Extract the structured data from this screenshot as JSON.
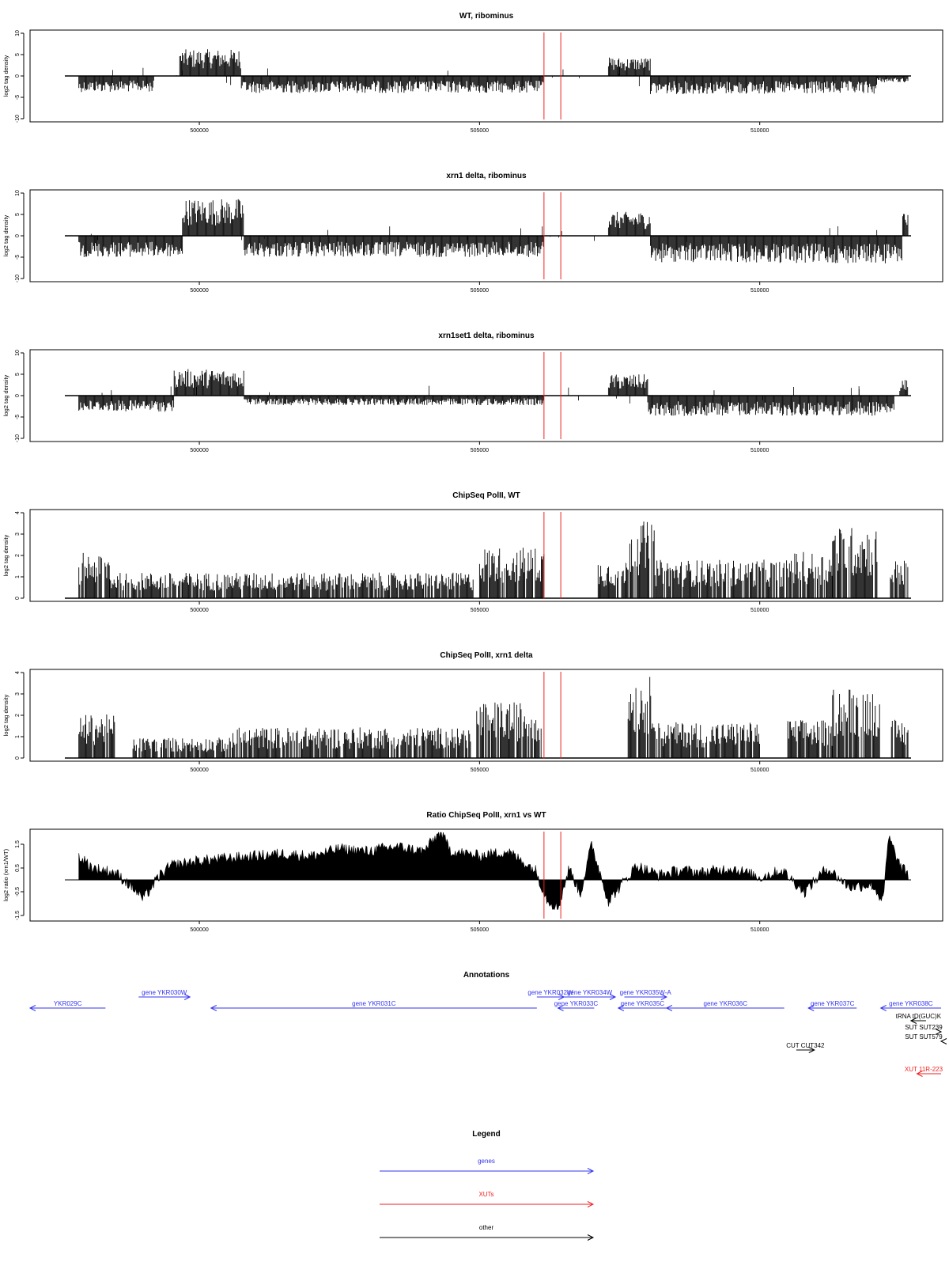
{
  "chart_data": [
    {
      "type": "bar",
      "title": "WT, ribominus",
      "ylabel": "log2 tag density",
      "ylim": [
        -10,
        10
      ],
      "yticks": [
        "10",
        "5",
        "0",
        "-5",
        "-10"
      ],
      "xlim": [
        497600,
        512700
      ],
      "xticks": [
        "500000",
        "505000",
        "510000"
      ],
      "red_markers": [
        506150,
        506450
      ],
      "segments": [
        {
          "x0": 497850,
          "x1": 499200,
          "v": -3
        },
        {
          "x0": 499650,
          "x1": 500750,
          "v": 5
        },
        {
          "x0": 500750,
          "x1": 506150,
          "v": -3.2
        },
        {
          "x0": 507300,
          "x1": 508050,
          "v": 3.5
        },
        {
          "x0": 508050,
          "x1": 512100,
          "v": -3.4
        },
        {
          "x0": 512100,
          "x1": 512650,
          "v": -1.2
        }
      ]
    },
    {
      "type": "bar",
      "title": "xrn1 delta, ribominus",
      "ylabel": "log2 tag density",
      "ylim": [
        -10,
        10
      ],
      "yticks": [
        "10",
        "5",
        "0",
        "-5",
        "-10"
      ],
      "xlim": [
        497600,
        512700
      ],
      "xticks": [
        "500000",
        "505000",
        "510000"
      ],
      "red_markers": [
        506150,
        506450
      ],
      "segments": [
        {
          "x0": 497850,
          "x1": 499700,
          "v": -4
        },
        {
          "x0": 499700,
          "x1": 500800,
          "v": 7
        },
        {
          "x0": 500800,
          "x1": 506150,
          "v": -4
        },
        {
          "x0": 507300,
          "x1": 508050,
          "v": 4.5
        },
        {
          "x0": 508050,
          "x1": 510300,
          "v": -5
        },
        {
          "x0": 510300,
          "x1": 512550,
          "v": -5.2
        },
        {
          "x0": 512550,
          "x1": 512650,
          "v": 6
        }
      ]
    },
    {
      "type": "bar",
      "title": "xrn1set1 delta, ribominus",
      "ylabel": "log2 tag density",
      "ylim": [
        -10,
        10
      ],
      "yticks": [
        "10",
        "5",
        "0",
        "-5",
        "-10"
      ],
      "xlim": [
        497600,
        512700
      ],
      "xticks": [
        "500000",
        "505000",
        "510000"
      ],
      "red_markers": [
        506150,
        506450
      ],
      "segments": [
        {
          "x0": 497850,
          "x1": 499550,
          "v": -3
        },
        {
          "x0": 499550,
          "x1": 500800,
          "v": 5
        },
        {
          "x0": 500800,
          "x1": 506150,
          "v": -1.8
        },
        {
          "x0": 507300,
          "x1": 508000,
          "v": 4
        },
        {
          "x0": 508000,
          "x1": 512400,
          "v": -3.8
        },
        {
          "x0": 512500,
          "x1": 512650,
          "v": 3
        }
      ]
    },
    {
      "type": "bar",
      "title": "ChipSeq PolII, WT",
      "ylabel": "log2 tag density",
      "ylim": [
        0,
        4
      ],
      "yticks": [
        "4",
        "3",
        "2",
        "1",
        "0"
      ],
      "xlim": [
        497600,
        512700
      ],
      "xticks": [
        "500000",
        "505000",
        "510000"
      ],
      "red_markers": [
        506150,
        506450
      ],
      "segments": [
        {
          "x0": 497850,
          "x1": 498400,
          "v": 1.8
        },
        {
          "x0": 498400,
          "x1": 499700,
          "v": 1
        },
        {
          "x0": 499700,
          "x1": 504900,
          "v": 1
        },
        {
          "x0": 505000,
          "x1": 506150,
          "v": 2
        },
        {
          "x0": 507100,
          "x1": 507650,
          "v": 1.5
        },
        {
          "x0": 507650,
          "x1": 508150,
          "v": 3
        },
        {
          "x0": 508150,
          "x1": 510500,
          "v": 1.5
        },
        {
          "x0": 510500,
          "x1": 511300,
          "v": 1.8
        },
        {
          "x0": 511300,
          "x1": 512100,
          "v": 2.8
        },
        {
          "x0": 512300,
          "x1": 512650,
          "v": 1.5
        }
      ]
    },
    {
      "type": "bar",
      "title": "ChipSeq PolII, xrn1 delta",
      "ylabel": "log2 tag density",
      "ylim": [
        0,
        4
      ],
      "yticks": [
        "4",
        "3",
        "2",
        "1",
        "0"
      ],
      "xlim": [
        497600,
        512700
      ],
      "xticks": [
        "500000",
        "505000",
        "510000"
      ],
      "red_markers": [
        506150,
        506450
      ],
      "segments": [
        {
          "x0": 497850,
          "x1": 498500,
          "v": 1.7
        },
        {
          "x0": 498800,
          "x1": 500600,
          "v": 0.8
        },
        {
          "x0": 500600,
          "x1": 504850,
          "v": 1.2
        },
        {
          "x0": 504950,
          "x1": 506100,
          "v": 2.2
        },
        {
          "x0": 507650,
          "x1": 508150,
          "v": 3.2
        },
        {
          "x0": 508150,
          "x1": 510000,
          "v": 1.4
        },
        {
          "x0": 510500,
          "x1": 511300,
          "v": 1.5
        },
        {
          "x0": 511300,
          "x1": 512150,
          "v": 2.8
        },
        {
          "x0": 512350,
          "x1": 512650,
          "v": 1.5
        }
      ]
    },
    {
      "type": "area",
      "title": "Ratio ChipSeq PolII, xrn1 vs WT",
      "ylabel": "log2 ratio (xrn1/WT)",
      "ylim": [
        -1.6,
        2.0
      ],
      "yticks": [
        "1.5",
        "0.5",
        "-0.5",
        "-1.5"
      ],
      "ytick_values": [
        1.5,
        0.5,
        -0.5,
        -1.5
      ],
      "baseline": 0,
      "xlim": [
        497600,
        512700
      ],
      "xticks": [
        "500000",
        "505000",
        "510000"
      ],
      "red_markers": [
        506150,
        506450
      ],
      "x": [
        497850,
        498100,
        498500,
        498800,
        499000,
        499300,
        499500,
        500000,
        500500,
        501000,
        501500,
        502000,
        502500,
        503000,
        503500,
        504000,
        504300,
        504500,
        505000,
        505500,
        506000,
        506200,
        506400,
        506600,
        506800,
        507000,
        507300,
        507800,
        508200,
        508600,
        509000,
        509500,
        510000,
        510400,
        510800,
        511200,
        511600,
        512000,
        512200,
        512300,
        512500,
        512650
      ],
      "y": [
        1.0,
        0.5,
        0.3,
        -0.3,
        -0.8,
        0.2,
        0.6,
        0.8,
        0.9,
        1.0,
        1.1,
        1.0,
        1.3,
        1.2,
        1.4,
        1.2,
        2.0,
        1.2,
        1.0,
        1.2,
        0.4,
        -0.8,
        -1.2,
        0.5,
        -0.6,
        1.5,
        -0.9,
        0.6,
        0.2,
        0.4,
        0.3,
        0.5,
        0.1,
        0.4,
        -0.5,
        0.5,
        -0.3,
        -0.2,
        -0.9,
        1.8,
        0.6,
        0.2
      ]
    }
  ],
  "annotations": {
    "title": "Annotations",
    "xlim": [
      497600,
      512700
    ],
    "items": [
      {
        "label": "YKR029C",
        "x0": 497600,
        "x1": 498850,
        "row": 1,
        "dir": "left",
        "color": "#3333ee"
      },
      {
        "label": "gene YKR030W",
        "x0": 499400,
        "x1": 500250,
        "row": 0,
        "dir": "right",
        "color": "#3333ee"
      },
      {
        "label": "gene YKR031C",
        "x0": 500600,
        "x1": 506000,
        "row": 1,
        "dir": "left",
        "color": "#3333ee"
      },
      {
        "label": "gene YKR032W",
        "x0": 506000,
        "x1": 506450,
        "row": 0,
        "dir": "right",
        "color": "#3333ee"
      },
      {
        "label": "gene YKR033C",
        "x0": 506350,
        "x1": 506950,
        "row": 1,
        "dir": "left",
        "color": "#3333ee"
      },
      {
        "label": "gene YKR034W",
        "x0": 506450,
        "x1": 507300,
        "row": 0,
        "dir": "right",
        "color": "#3333ee"
      },
      {
        "label": "gene YKR035W-A",
        "x0": 507450,
        "x1": 508150,
        "row": 0,
        "dir": "right",
        "color": "#3333ee"
      },
      {
        "label": "gene YKR035C",
        "x0": 507350,
        "x1": 508150,
        "row": 1,
        "dir": "left",
        "color": "#3333ee"
      },
      {
        "label": "gene YKR036C",
        "x0": 508150,
        "x1": 510100,
        "row": 1,
        "dir": "left",
        "color": "#3333ee"
      },
      {
        "label": "gene YKR037C",
        "x0": 510500,
        "x1": 511300,
        "row": 1,
        "dir": "left",
        "color": "#3333ee"
      },
      {
        "label": "gene YKR038C",
        "x0": 511700,
        "x1": 512900,
        "row": 1,
        "dir": "left",
        "color": "#3333ee"
      },
      {
        "label": "tRNA tD(GUC)K",
        "x0": 512200,
        "x1": 512450,
        "row": 2,
        "dir": "left",
        "color": "#000000"
      },
      {
        "label": "SUT SUT239",
        "x0": 512900,
        "x1": 513300,
        "row": 3,
        "dir": "right",
        "color": "#000000"
      },
      {
        "label": "SUT SUT579",
        "x0": 512700,
        "x1": 513100,
        "row": 4,
        "dir": "left",
        "color": "#000000"
      },
      {
        "label": "CUT CUT342",
        "x0": 510300,
        "x1": 510600,
        "row": 5,
        "dir": "right",
        "color": "#000000"
      },
      {
        "label": "XUT 11R-223",
        "x0": 512300,
        "x1": 513350,
        "row": 7,
        "dir": "left",
        "color": "#ee2222"
      }
    ]
  },
  "legend": {
    "title": "Legend",
    "items": [
      {
        "label": "genes",
        "color": "#3333ee"
      },
      {
        "label": "XUTs",
        "color": "#ee2222"
      },
      {
        "label": "other",
        "color": "#000000"
      }
    ]
  }
}
